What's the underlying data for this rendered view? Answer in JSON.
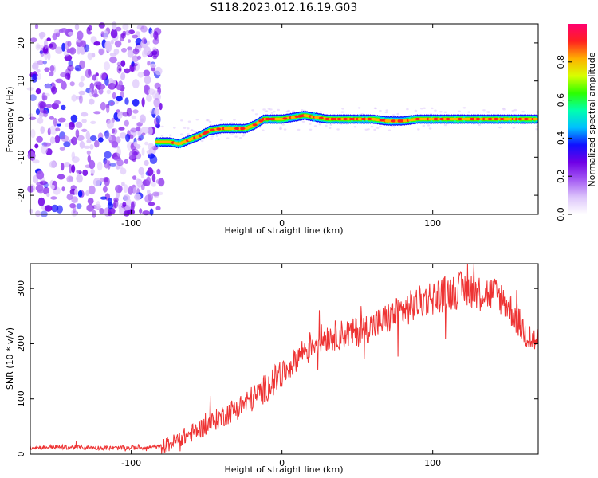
{
  "title": "S118.2023.012.16.19.G03",
  "chart_data": [
    {
      "type": "heatmap",
      "xlabel": "Height of straight line (km)",
      "ylabel": "Frequency (Hz)",
      "xlim": [
        -167,
        170
      ],
      "ylim": [
        -25,
        25
      ],
      "xticks": [
        -100,
        0,
        100
      ],
      "yticks": [
        -20,
        -10,
        0,
        10,
        20
      ],
      "grid": false,
      "colorbar": {
        "label": "Normalized spectral amplitude",
        "range": [
          0,
          1
        ],
        "ticks": [
          0.0,
          0.2,
          0.4,
          0.6,
          0.8
        ],
        "colormap": [
          "#ffffff",
          "#dcc4fb",
          "#a45af3",
          "#7000e6",
          "#1010ff",
          "#00c0ff",
          "#00ffb0",
          "#2cff00",
          "#d8ff00",
          "#ffb000",
          "#ff2020",
          "#ff0070"
        ]
      },
      "noise_region": {
        "x_range": [
          -167,
          -80
        ],
        "freq_range": [
          -25,
          25
        ]
      },
      "ridge": {
        "x": [
          -83,
          -75,
          -68,
          -62,
          -55,
          -48,
          -40,
          -32,
          -24,
          -18,
          -12,
          -5,
          0,
          8,
          15,
          22,
          30,
          40,
          50,
          60,
          70,
          80,
          90,
          100,
          110,
          120,
          130,
          140,
          150,
          160,
          170
        ],
        "freq": [
          -6,
          -6,
          -6.5,
          -5.5,
          -4.5,
          -3,
          -2.5,
          -2.5,
          -2.5,
          -1.5,
          0,
          0,
          0,
          0.5,
          1,
          0.5,
          0,
          0,
          0,
          0,
          -0.5,
          -0.5,
          0,
          0,
          0,
          0,
          0,
          0,
          0,
          0,
          0
        ]
      }
    },
    {
      "type": "line",
      "xlabel": "Height of straight line (km)",
      "ylabel": "SNR (10 * v/v)",
      "xlim": [
        -167,
        170
      ],
      "ylim": [
        0,
        345
      ],
      "xticks": [
        -100,
        0,
        100
      ],
      "yticks": [
        0,
        100,
        200,
        300
      ],
      "grid": false,
      "color": "#ee3333",
      "series": [
        {
          "x": [
            -167,
            -150,
            -130,
            -110,
            -90,
            -80,
            -75,
            -70,
            -65,
            -60,
            -55,
            -50,
            -45,
            -40,
            -35,
            -30,
            -25,
            -20,
            -15,
            -10,
            -5,
            0,
            5,
            10,
            15,
            20,
            25,
            30,
            40,
            50,
            60,
            70,
            80,
            90,
            95,
            100,
            105,
            110,
            115,
            120,
            125,
            130,
            135,
            140,
            145,
            150,
            155,
            160,
            165,
            170
          ],
          "values": [
            12,
            13,
            12,
            11,
            12,
            14,
            18,
            24,
            32,
            38,
            45,
            52,
            60,
            68,
            76,
            83,
            91,
            100,
            110,
            122,
            133,
            144,
            158,
            175,
            190,
            200,
            208,
            213,
            217,
            222,
            232,
            245,
            260,
            272,
            280,
            285,
            288,
            292,
            295,
            298,
            298,
            295,
            292,
            290,
            285,
            270,
            248,
            225,
            208,
            205
          ]
        }
      ]
    }
  ]
}
